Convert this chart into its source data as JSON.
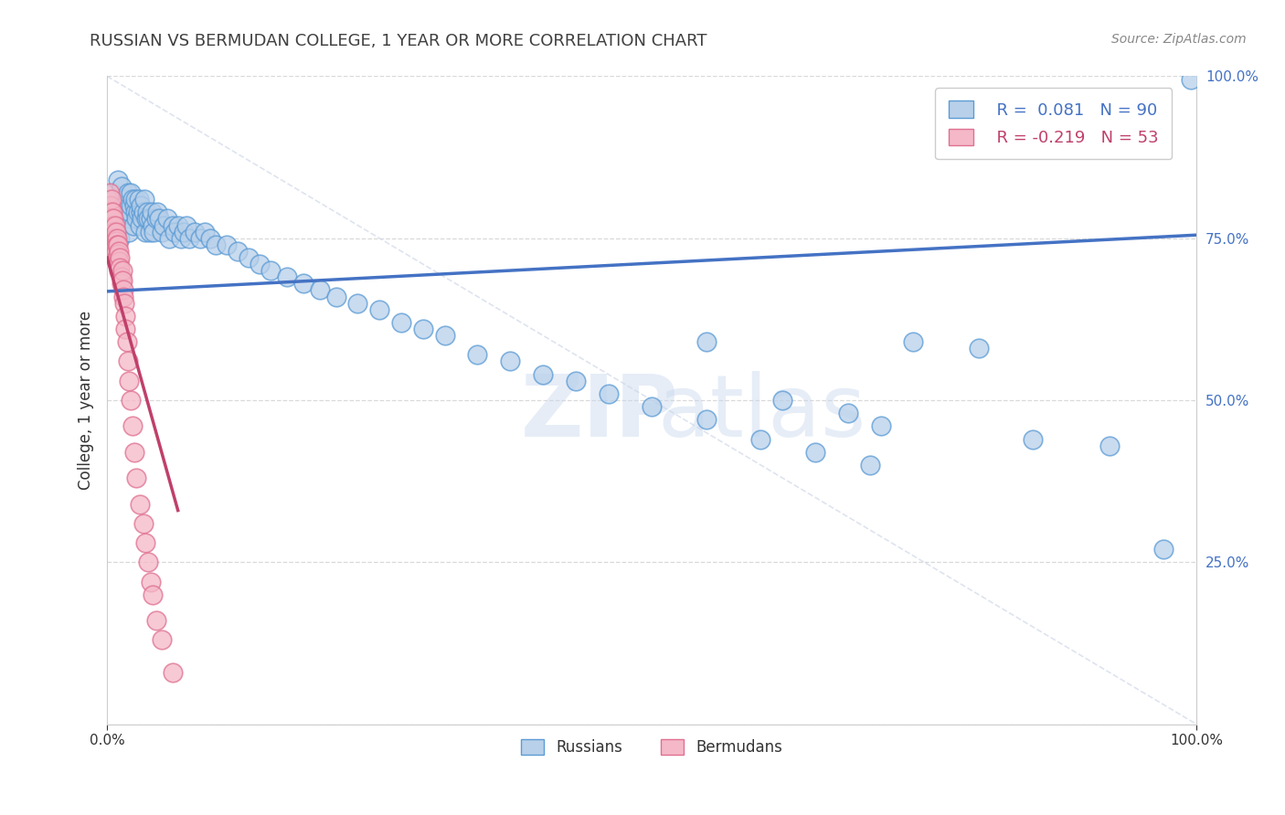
{
  "title": "RUSSIAN VS BERMUDAN COLLEGE, 1 YEAR OR MORE CORRELATION CHART",
  "source_text": "Source: ZipAtlas.com",
  "ylabel": "College, 1 year or more",
  "xlim": [
    0.0,
    1.0
  ],
  "ylim": [
    0.0,
    1.0
  ],
  "watermark1": "ZIP",
  "watermark2": "atlas",
  "russian_R": 0.081,
  "russian_N": 90,
  "bermudan_R": -0.219,
  "bermudan_N": 53,
  "russian_color": "#b8d0ea",
  "russian_edge_color": "#5b9bd5",
  "russian_line_color": "#4472c4",
  "bermudan_color": "#f4b8c8",
  "bermudan_edge_color": "#e07090",
  "bermudan_line_color": "#c0406a",
  "diag_color": "#d0d8e8",
  "grid_color": "#d0d0d0",
  "background_color": "#ffffff",
  "title_color": "#404040",
  "source_color": "#888888",
  "yaxis_color": "#4472c4",
  "russians_x": [
    0.005,
    0.008,
    0.01,
    0.012,
    0.013,
    0.015,
    0.016,
    0.017,
    0.018,
    0.019,
    0.02,
    0.021,
    0.022,
    0.022,
    0.023,
    0.024,
    0.025,
    0.026,
    0.026,
    0.027,
    0.028,
    0.029,
    0.03,
    0.031,
    0.031,
    0.032,
    0.033,
    0.034,
    0.035,
    0.036,
    0.037,
    0.038,
    0.039,
    0.04,
    0.041,
    0.042,
    0.043,
    0.045,
    0.046,
    0.048,
    0.05,
    0.052,
    0.055,
    0.057,
    0.06,
    0.062,
    0.065,
    0.068,
    0.07,
    0.073,
    0.075,
    0.08,
    0.085,
    0.09,
    0.095,
    0.1,
    0.11,
    0.12,
    0.13,
    0.14,
    0.15,
    0.165,
    0.18,
    0.195,
    0.21,
    0.23,
    0.25,
    0.27,
    0.29,
    0.31,
    0.34,
    0.37,
    0.4,
    0.43,
    0.46,
    0.5,
    0.55,
    0.6,
    0.65,
    0.7,
    0.55,
    0.62,
    0.68,
    0.71,
    0.74,
    0.8,
    0.85,
    0.92,
    0.97,
    0.995
  ],
  "russians_y": [
    0.82,
    0.76,
    0.84,
    0.75,
    0.83,
    0.79,
    0.81,
    0.8,
    0.78,
    0.82,
    0.76,
    0.79,
    0.8,
    0.82,
    0.81,
    0.77,
    0.8,
    0.79,
    0.81,
    0.78,
    0.79,
    0.81,
    0.77,
    0.79,
    0.8,
    0.78,
    0.79,
    0.81,
    0.76,
    0.78,
    0.79,
    0.78,
    0.76,
    0.78,
    0.79,
    0.77,
    0.76,
    0.78,
    0.79,
    0.78,
    0.76,
    0.77,
    0.78,
    0.75,
    0.77,
    0.76,
    0.77,
    0.75,
    0.76,
    0.77,
    0.75,
    0.76,
    0.75,
    0.76,
    0.75,
    0.74,
    0.74,
    0.73,
    0.72,
    0.71,
    0.7,
    0.69,
    0.68,
    0.67,
    0.66,
    0.65,
    0.64,
    0.62,
    0.61,
    0.6,
    0.57,
    0.56,
    0.54,
    0.53,
    0.51,
    0.49,
    0.47,
    0.44,
    0.42,
    0.4,
    0.59,
    0.5,
    0.48,
    0.46,
    0.59,
    0.58,
    0.44,
    0.43,
    0.27,
    0.995
  ],
  "bermudans_x": [
    0.002,
    0.003,
    0.003,
    0.004,
    0.004,
    0.005,
    0.005,
    0.005,
    0.006,
    0.006,
    0.006,
    0.007,
    0.007,
    0.007,
    0.008,
    0.008,
    0.008,
    0.009,
    0.009,
    0.009,
    0.01,
    0.01,
    0.01,
    0.011,
    0.011,
    0.011,
    0.012,
    0.012,
    0.013,
    0.013,
    0.014,
    0.014,
    0.015,
    0.015,
    0.016,
    0.017,
    0.017,
    0.018,
    0.019,
    0.02,
    0.022,
    0.023,
    0.025,
    0.027,
    0.03,
    0.033,
    0.035,
    0.038,
    0.04,
    0.042,
    0.045,
    0.05,
    0.06
  ],
  "bermudans_y": [
    0.82,
    0.8,
    0.79,
    0.81,
    0.78,
    0.79,
    0.77,
    0.76,
    0.78,
    0.76,
    0.75,
    0.77,
    0.75,
    0.74,
    0.76,
    0.745,
    0.73,
    0.75,
    0.74,
    0.72,
    0.74,
    0.725,
    0.71,
    0.73,
    0.715,
    0.7,
    0.72,
    0.705,
    0.69,
    0.68,
    0.7,
    0.685,
    0.67,
    0.66,
    0.65,
    0.63,
    0.61,
    0.59,
    0.56,
    0.53,
    0.5,
    0.46,
    0.42,
    0.38,
    0.34,
    0.31,
    0.28,
    0.25,
    0.22,
    0.2,
    0.16,
    0.13,
    0.08
  ]
}
